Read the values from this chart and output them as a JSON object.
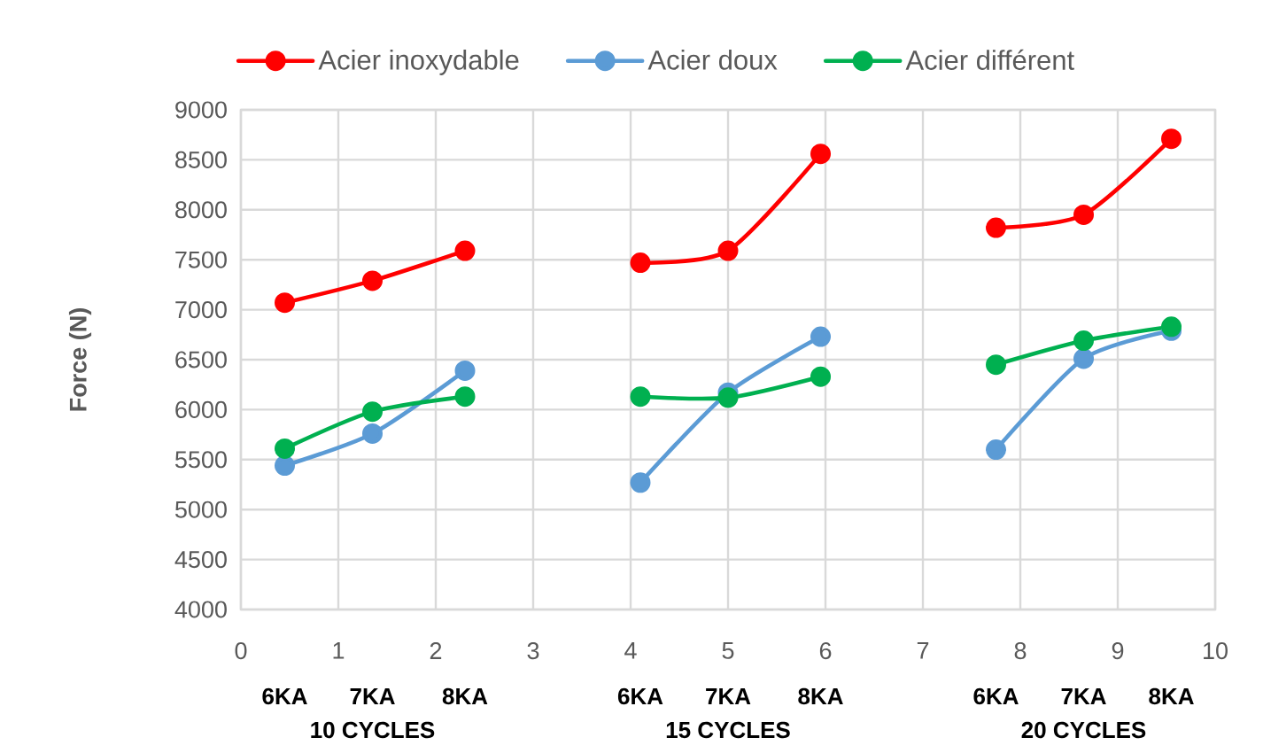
{
  "chart_data": {
    "type": "line",
    "ylabel": "Force (N)",
    "x": [
      0.45,
      1.35,
      2.3,
      null,
      4.1,
      5,
      5.95,
      null,
      7.75,
      8.65,
      9.55
    ],
    "series": [
      {
        "name": "Acier inoxydable",
        "color": "#ff0000",
        "values": [
          7070,
          7290,
          7590,
          null,
          7470,
          7590,
          8560,
          null,
          7820,
          7950,
          8710
        ]
      },
      {
        "name": "Acier doux",
        "color": "#5b9bd5",
        "values": [
          5440,
          5760,
          6390,
          null,
          5270,
          6170,
          6730,
          null,
          5600,
          6510,
          6790
        ]
      },
      {
        "name": "Acier différent",
        "color": "#00b050",
        "values": [
          5610,
          5980,
          6130,
          null,
          6130,
          6120,
          6330,
          null,
          6450,
          6690,
          6830
        ]
      }
    ],
    "xlim": [
      0,
      10
    ],
    "xticks": [
      0,
      1,
      2,
      3,
      4,
      5,
      6,
      7,
      8,
      9,
      10
    ],
    "ylim": [
      4000,
      9000
    ],
    "yticks": [
      4000,
      4500,
      5000,
      5500,
      6000,
      6500,
      7000,
      7500,
      8000,
      8500,
      9000
    ],
    "grid": true,
    "legend": "top",
    "marker": "circle",
    "line_style": "solid",
    "annotations": [
      "6KA",
      "7KA",
      "8KA",
      "10 CYCLES",
      "6KA",
      "7KA",
      "8KA",
      "15 CYCLES",
      "6KA",
      "7KA",
      "8KA",
      "20 CYCLES"
    ]
  }
}
